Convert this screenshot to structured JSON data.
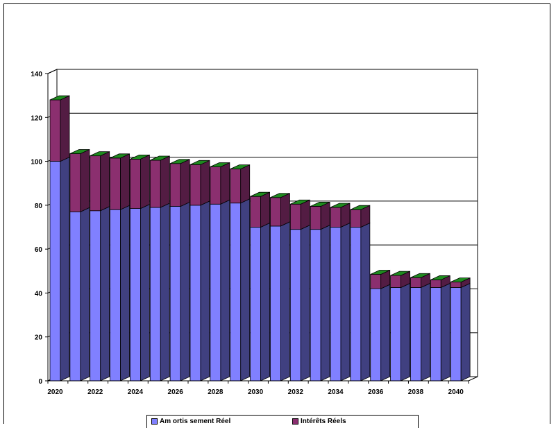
{
  "chart_data": {
    "type": "bar",
    "stacked": true,
    "title": "",
    "xlabel": "",
    "ylabel": "",
    "ylim": [
      0,
      140
    ],
    "yticks": [
      0,
      20,
      40,
      60,
      80,
      100,
      120,
      140
    ],
    "grid": true,
    "legend_position": "bottom",
    "categories": [
      "2020",
      "2021",
      "2022",
      "2023",
      "2024",
      "2025",
      "2026",
      "2027",
      "2028",
      "2029",
      "2030",
      "2031",
      "2032",
      "2033",
      "2034",
      "2035",
      "2036",
      "2037",
      "2038",
      "2039",
      "2040"
    ],
    "tick_labels": [
      "2020",
      "",
      "2022",
      "",
      "2024",
      "",
      "2026",
      "",
      "2028",
      "",
      "2030",
      "",
      "2032",
      "",
      "2034",
      "",
      "2036",
      "",
      "2038",
      "",
      "2040"
    ],
    "series": [
      {
        "name": "Am ortis sement Réel",
        "color": "#8080ff",
        "values": [
          100,
          77,
          77.5,
          78,
          78.5,
          79,
          79.5,
          80,
          80.5,
          81,
          70,
          70.5,
          69,
          69,
          70,
          70,
          42,
          42.5,
          42.5,
          42.5,
          42.5
        ]
      },
      {
        "name": "Intérêts Réels",
        "color": "#8b2f6f",
        "values": [
          28,
          26.5,
          25,
          23.5,
          22.5,
          21.5,
          19.5,
          18.5,
          17,
          15.5,
          14,
          13,
          11.5,
          10.5,
          9,
          8,
          6.5,
          5.5,
          4.5,
          3.5,
          2.5
        ]
      }
    ],
    "top_color": "#1f8a1f"
  }
}
